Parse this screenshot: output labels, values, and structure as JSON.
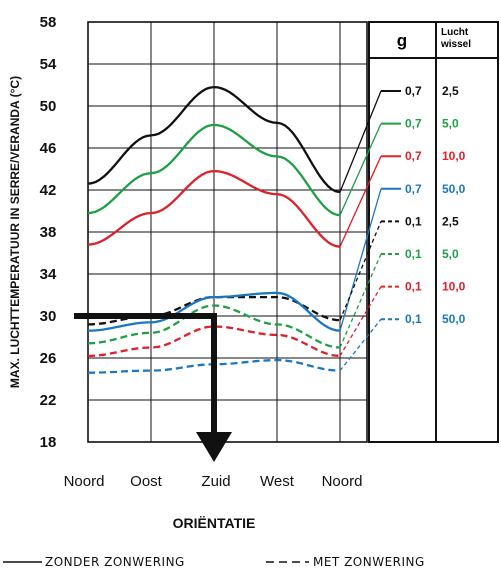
{
  "chart_data": {
    "type": "line",
    "xlabel": "ORIËNTATIE",
    "ylabel": "MAX. LUCHTTEMPERATUUR IN SERRE/VERANDA (°C)",
    "categories": [
      "Noord",
      "Oost",
      "Zuid",
      "West",
      "Noord"
    ],
    "ylim": [
      18,
      58
    ],
    "yticks": [
      "58",
      "54",
      "50",
      "46",
      "42",
      "38",
      "34",
      "30",
      "26",
      "22",
      "18"
    ],
    "grid": true,
    "series": [
      {
        "color": "#111111",
        "style": "solid",
        "values": [
          42.6,
          47.2,
          51.8,
          48.4,
          41.8
        ]
      },
      {
        "color": "#1fa046",
        "style": "solid",
        "values": [
          39.8,
          43.6,
          48.2,
          45.2,
          39.6
        ]
      },
      {
        "color": "#e0202a",
        "style": "solid",
        "values": [
          36.8,
          39.8,
          43.8,
          41.6,
          36.6
        ]
      },
      {
        "color": "#111111",
        "style": "dashed",
        "values": [
          29.2,
          30.0,
          31.8,
          31.8,
          29.6
        ]
      },
      {
        "color": "#1c77c3",
        "style": "solid",
        "values": [
          28.6,
          29.4,
          31.8,
          32.2,
          28.6
        ]
      },
      {
        "color": "#1fa046",
        "style": "dashed",
        "values": [
          27.4,
          28.4,
          31.0,
          29.2,
          27.0
        ]
      },
      {
        "color": "#e0202a",
        "style": "dashed",
        "values": [
          26.2,
          27.0,
          29.0,
          28.2,
          26.2
        ]
      },
      {
        "color": "#1c77c3",
        "style": "dashed",
        "values": [
          24.6,
          24.8,
          25.4,
          25.8,
          24.8
        ]
      }
    ],
    "reading": {
      "y": 30,
      "category": "Zuid"
    },
    "legend": {
      "g_header": "g",
      "lucht_header_1": "Lucht",
      "lucht_header_2": "wissel",
      "rows": [
        {
          "g": "0,7",
          "lucht": "2,5",
          "color": "#111111",
          "style": "solid"
        },
        {
          "g": "0,7",
          "lucht": "5,0",
          "color": "#1fa046",
          "style": "solid"
        },
        {
          "g": "0,7",
          "lucht": "10,0",
          "color": "#e0202a",
          "style": "solid"
        },
        {
          "g": "0,7",
          "lucht": "50,0",
          "color": "#1c77c3",
          "style": "solid"
        },
        {
          "g": "0,1",
          "lucht": "2,5",
          "color": "#111111",
          "style": "dashed"
        },
        {
          "g": "0,1",
          "lucht": "5,0",
          "color": "#1fa046",
          "style": "dashed"
        },
        {
          "g": "0,1",
          "lucht": "10,0",
          "color": "#e0202a",
          "style": "dashed"
        },
        {
          "g": "0,1",
          "lucht": "50,0",
          "color": "#1c77c3",
          "style": "dashed"
        }
      ]
    }
  },
  "footer": {
    "solid_label": "ZONDER ZONWERING",
    "dashed_label": "MET ZONWERING"
  }
}
